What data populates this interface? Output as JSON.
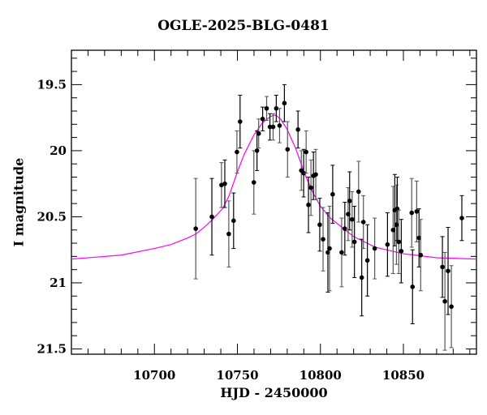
{
  "chart_data": {
    "type": "scatter",
    "title": "OGLE-2025-BLG-0481",
    "xlabel": "HJD - 2450000",
    "ylabel": "I magnitude",
    "xlim": [
      10650,
      10894
    ],
    "ylim": [
      21.54,
      19.24
    ],
    "y_inverted": true,
    "xticks": [
      10700,
      10750,
      10800,
      10850
    ],
    "yticks": [
      19.5,
      20,
      20.5,
      21,
      21.5
    ],
    "ytick_labels": [
      "19.5",
      "20",
      "20.5",
      "21",
      "21.5"
    ],
    "grid": false,
    "colors": {
      "points": "#000000",
      "errorbars": "#555555",
      "model": "#ff00ff"
    },
    "series": [
      {
        "kind": "points-with-errorbars",
        "x": [
          10724.9,
          10734.6,
          10740.4,
          10742.4,
          10744.8,
          10747.7,
          10749.7,
          10751.6,
          10759.9,
          10761.8,
          10762.8,
          10765.2,
          10767.6,
          10769.6,
          10771.5,
          10773.4,
          10775.4,
          10778.3,
          10780.2,
          10786.5,
          10788.5,
          10789.9,
          10791.4,
          10792.8,
          10794.3,
          10795.8,
          10797.2,
          10799.6,
          10801.6,
          10804.5,
          10805.5,
          10807.4,
          10812.8,
          10814.7,
          10816.7,
          10817.6,
          10819.1,
          10820.5,
          10823.0,
          10824.9,
          10825.9,
          10828.3,
          10832.7,
          10840.4,
          10843.8,
          10844.8,
          10845.8,
          10846.3,
          10847.2,
          10848.7,
          10855.0,
          10855.5,
          10858.0,
          10859.4,
          10860.4,
          10873.5,
          10875.0,
          10876.9,
          10878.9,
          10885.2
        ],
        "y": [
          20.59,
          20.5,
          20.26,
          20.25,
          20.63,
          20.53,
          20.01,
          19.78,
          20.24,
          20.0,
          19.87,
          19.76,
          19.68,
          19.82,
          19.82,
          19.68,
          19.81,
          19.64,
          19.99,
          19.84,
          20.15,
          20.17,
          20.01,
          20.41,
          20.28,
          20.19,
          20.18,
          20.56,
          20.67,
          20.77,
          20.74,
          20.33,
          20.77,
          20.59,
          20.48,
          20.38,
          20.52,
          20.69,
          20.31,
          20.96,
          20.54,
          20.83,
          20.74,
          20.71,
          20.6,
          20.45,
          20.56,
          20.44,
          20.69,
          20.76,
          20.47,
          21.03,
          20.46,
          20.66,
          20.79,
          20.88,
          21.14,
          20.91,
          21.18,
          20.51
        ],
        "err": [
          0.38,
          0.29,
          0.17,
          0.18,
          0.25,
          0.21,
          0.16,
          0.2,
          0.24,
          0.15,
          0.11,
          0.09,
          0.09,
          0.1,
          0.1,
          0.1,
          0.13,
          0.14,
          0.21,
          0.14,
          0.15,
          0.18,
          0.16,
          0.21,
          0.21,
          0.18,
          0.19,
          0.2,
          0.24,
          0.3,
          0.32,
          0.22,
          0.26,
          0.2,
          0.2,
          0.22,
          0.21,
          0.27,
          0.23,
          0.29,
          0.2,
          0.27,
          0.23,
          0.24,
          0.33,
          0.27,
          0.3,
          0.24,
          0.24,
          0.24,
          0.26,
          0.28,
          0.23,
          0.22,
          0.27,
          0.23,
          0.37,
          0.33,
          0.31,
          0.17
        ]
      },
      {
        "kind": "model-line",
        "x": [
          10650,
          10680,
          10700,
          10710,
          10720,
          10725,
          10730,
          10735,
          10741,
          10745,
          10750,
          10754,
          10760,
          10765,
          10770,
          10773,
          10776,
          10780,
          10785,
          10791,
          10796,
          10800,
          10806,
          10812,
          10820,
          10833,
          10850,
          10870,
          10894
        ],
        "y": [
          20.82,
          20.79,
          20.74,
          20.71,
          20.66,
          20.63,
          20.58,
          20.52,
          20.44,
          20.34,
          20.16,
          20.03,
          19.88,
          19.79,
          19.74,
          19.73,
          19.76,
          19.84,
          19.98,
          20.19,
          20.33,
          20.42,
          20.51,
          20.57,
          20.65,
          20.73,
          20.78,
          20.81,
          20.82
        ]
      }
    ]
  }
}
